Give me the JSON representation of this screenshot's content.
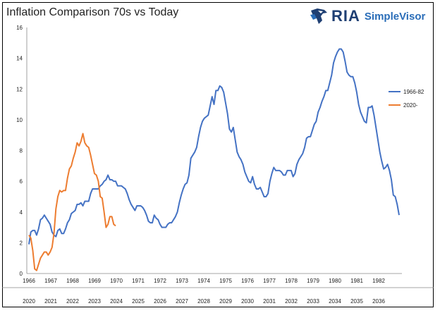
{
  "header": {
    "title": "Inflation Comparison 70s vs Today",
    "logo_main": "RIA",
    "logo_sub": "SimpleVisor",
    "logo_icon": "eagle-icon"
  },
  "chart_data": {
    "type": "line",
    "title": "Inflation Comparison 70s vs Today",
    "xlabel": "",
    "ylabel": "",
    "ylim": [
      0,
      16
    ],
    "yticks": [
      0,
      2,
      4,
      6,
      8,
      10,
      12,
      14,
      16
    ],
    "grid": false,
    "legend_position": "right",
    "x_axis_top_labels": [
      "1966",
      "1967",
      "1968",
      "1969",
      "1970",
      "1971",
      "1972",
      "1973",
      "1974",
      "1975",
      "1976",
      "1977",
      "1978",
      "1979",
      "1980",
      "1981",
      "1982"
    ],
    "x_axis_bottom_labels": [
      "2020",
      "2021",
      "2022",
      "2023",
      "2024",
      "2025",
      "2026",
      "2027",
      "2028",
      "2029",
      "2030",
      "2031",
      "2032",
      "2033",
      "2034",
      "2035",
      "2036"
    ],
    "series": [
      {
        "name": "1966-82",
        "color": "#4472c4",
        "start": 0,
        "values": [
          1.9,
          2.7,
          2.8,
          2.8,
          2.5,
          2.9,
          3.5,
          3.6,
          3.8,
          3.6,
          3.4,
          3.2,
          2.7,
          2.5,
          2.4,
          2.8,
          2.9,
          2.6,
          2.6,
          2.9,
          3.3,
          3.5,
          3.9,
          4.0,
          4.1,
          4.5,
          4.5,
          4.6,
          4.4,
          4.7,
          4.7,
          4.7,
          5.2,
          5.5,
          5.5,
          5.5,
          5.5,
          5.7,
          5.8,
          6.0,
          6.1,
          6.4,
          6.1,
          6.1,
          6.0,
          6.0,
          5.7,
          5.7,
          5.7,
          5.6,
          5.5,
          5.2,
          4.8,
          4.5,
          4.3,
          4.1,
          4.4,
          4.4,
          4.4,
          4.3,
          4.1,
          3.8,
          3.4,
          3.3,
          3.3,
          3.8,
          3.6,
          3.5,
          3.2,
          3.0,
          3.0,
          3.0,
          3.2,
          3.3,
          3.3,
          3.5,
          3.7,
          4.0,
          4.6,
          5.1,
          5.5,
          5.8,
          5.9,
          6.4,
          7.5,
          7.7,
          7.9,
          8.2,
          8.9,
          9.5,
          9.9,
          10.1,
          10.2,
          10.3,
          10.9,
          11.5,
          11.0,
          11.9,
          11.9,
          12.2,
          12.1,
          11.8,
          11.1,
          10.4,
          9.4,
          9.2,
          9.5,
          8.7,
          7.9,
          7.6,
          7.4,
          7.1,
          6.6,
          6.3,
          6.0,
          5.9,
          6.3,
          5.8,
          5.5,
          5.5,
          5.6,
          5.3,
          5.0,
          5.0,
          5.2,
          6.0,
          6.5,
          6.9,
          6.7,
          6.7,
          6.7,
          6.6,
          6.4,
          6.4,
          6.7,
          6.7,
          6.7,
          6.3,
          6.5,
          7.1,
          7.4,
          7.6,
          7.8,
          8.2,
          8.8,
          8.9,
          8.9,
          9.3,
          9.7,
          9.9,
          10.5,
          10.8,
          11.2,
          11.5,
          11.9,
          11.9,
          12.4,
          12.9,
          13.7,
          14.1,
          14.4,
          14.6,
          14.6,
          14.4,
          13.8,
          13.1,
          12.9,
          12.8,
          12.8,
          12.4,
          11.8,
          11.0,
          10.5,
          10.2,
          9.9,
          9.8,
          10.8,
          10.8,
          10.9,
          10.3,
          9.5,
          8.7,
          7.9,
          7.3,
          6.8,
          6.9,
          7.1,
          6.7,
          6.1,
          5.1,
          5.0,
          4.5,
          3.8
        ]
      },
      {
        "name": "2020-",
        "color": "#ed7d31",
        "start": 0,
        "values": [
          2.5,
          2.3,
          1.5,
          0.3,
          0.2,
          0.6,
          1.0,
          1.2,
          1.4,
          1.4,
          1.2,
          1.4,
          1.7,
          2.6,
          4.2,
          5.0,
          5.4,
          5.3,
          5.4,
          5.4,
          6.2,
          6.8,
          7.0,
          7.5,
          7.9,
          8.5,
          8.3,
          8.6,
          9.1,
          8.5,
          8.3,
          8.2,
          7.7,
          7.1,
          6.5,
          6.4,
          6.0,
          5.0,
          4.9,
          4.0,
          3.0,
          3.2,
          3.7,
          3.7,
          3.2,
          3.1
        ]
      }
    ]
  }
}
